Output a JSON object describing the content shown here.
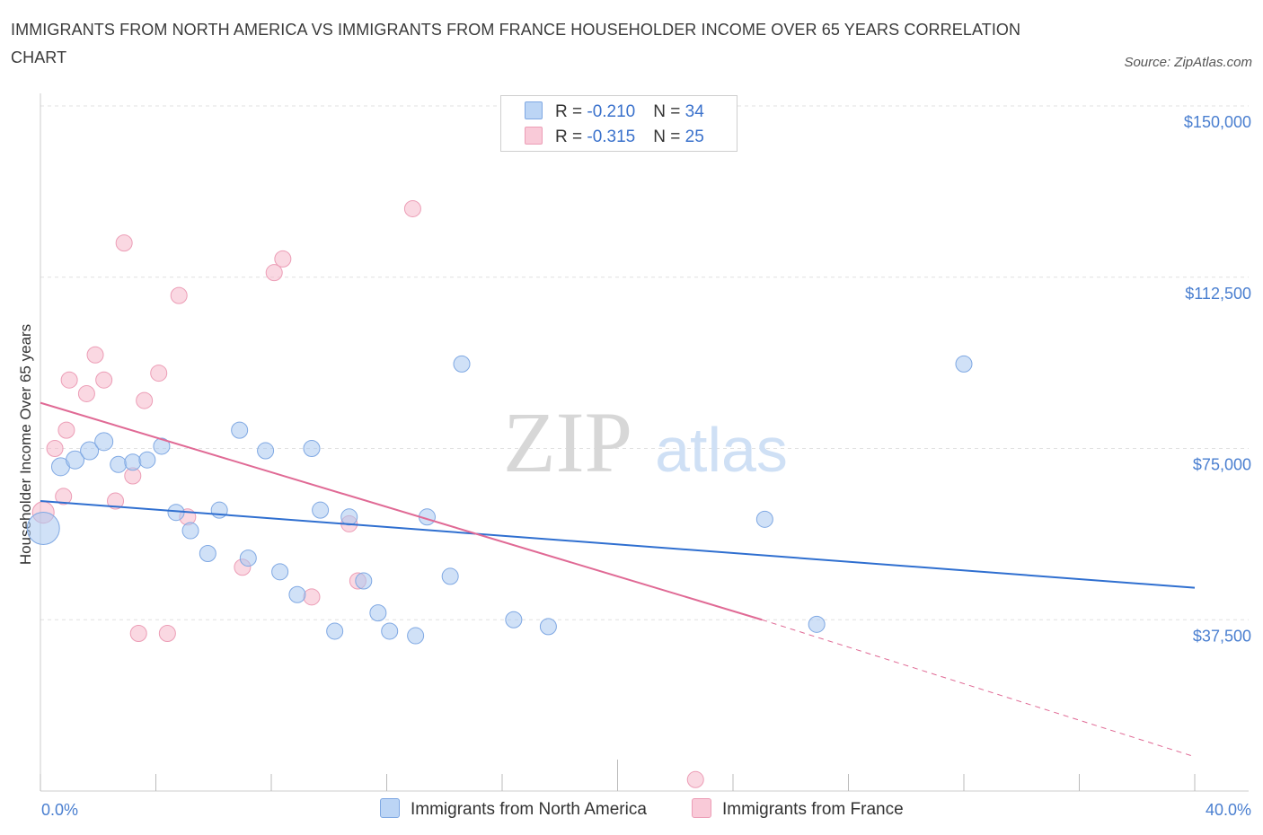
{
  "header": {
    "title": "IMMIGRANTS FROM NORTH AMERICA VS IMMIGRANTS FROM FRANCE HOUSEHOLDER INCOME OVER 65 YEARS CORRELATION CHART",
    "source": "Source: ZipAtlas.com"
  },
  "watermark": {
    "zip": "ZIP",
    "atlas": "atlas"
  },
  "legend": {
    "rows": [
      {
        "r_label": "R = ",
        "r_value": "-0.210",
        "n_label": "N = ",
        "n_value": "34"
      },
      {
        "r_label": "R = ",
        "r_value": "-0.315",
        "n_label": "N = ",
        "n_value": "25"
      }
    ]
  },
  "chart_data": {
    "type": "scatter",
    "ylabel": "Householder Income Over 65 years",
    "xlim": [
      0,
      40
    ],
    "ylim": [
      0,
      150000
    ],
    "x_tick_labels": [
      "0.0%",
      "40.0%"
    ],
    "y_tick_labels": [
      "$150,000",
      "$112,500",
      "$75,000",
      "$37,500"
    ],
    "y_ticks": [
      150000,
      112500,
      75000,
      37500
    ],
    "grid": true,
    "legend_position": "top-center",
    "colors": {
      "north_america": "#a9c8f0",
      "north_america_line": "#2f6fd0",
      "france": "#f6b8cb",
      "france_line": "#e06a95"
    },
    "series": [
      {
        "name": "Immigrants from North America",
        "r": -0.21,
        "n": 34,
        "trend": {
          "x0": 0,
          "y0": 63500,
          "x1": 40,
          "y1": 44500
        },
        "points": [
          [
            0.1,
            57500,
            18
          ],
          [
            0.7,
            71000,
            10
          ],
          [
            1.2,
            72500,
            10
          ],
          [
            1.7,
            74500,
            10
          ],
          [
            2.2,
            76500,
            10
          ],
          [
            2.7,
            71500,
            9
          ],
          [
            3.2,
            72000,
            9
          ],
          [
            3.7,
            72500,
            9
          ],
          [
            4.2,
            75500,
            9
          ],
          [
            4.7,
            61000,
            9
          ],
          [
            5.2,
            57000,
            9
          ],
          [
            5.8,
            52000,
            9
          ],
          [
            6.2,
            61500,
            9
          ],
          [
            6.9,
            79000,
            9
          ],
          [
            7.2,
            51000,
            9
          ],
          [
            7.8,
            74500,
            9
          ],
          [
            8.3,
            48000,
            9
          ],
          [
            8.9,
            43000,
            9
          ],
          [
            9.4,
            75000,
            9
          ],
          [
            9.7,
            61500,
            9
          ],
          [
            10.2,
            35000,
            9
          ],
          [
            10.7,
            60000,
            9
          ],
          [
            11.2,
            46000,
            9
          ],
          [
            11.7,
            39000,
            9
          ],
          [
            12.1,
            35000,
            9
          ],
          [
            13.0,
            34000,
            9
          ],
          [
            13.4,
            60000,
            9
          ],
          [
            14.2,
            47000,
            9
          ],
          [
            14.6,
            93500,
            9
          ],
          [
            16.4,
            37500,
            9
          ],
          [
            17.6,
            36000,
            9
          ],
          [
            25.1,
            59500,
            9
          ],
          [
            26.9,
            36500,
            9
          ],
          [
            32.0,
            93500,
            9
          ]
        ]
      },
      {
        "name": "Immigrants from France",
        "r": -0.315,
        "n": 25,
        "trend": {
          "x0": 0,
          "y0": 85000,
          "x1": 25.0,
          "y1": 37500,
          "dash_x1": 40,
          "dash_y1": 7500
        },
        "points": [
          [
            0.1,
            61000,
            12
          ],
          [
            0.5,
            75000,
            9
          ],
          [
            0.8,
            64500,
            9
          ],
          [
            0.9,
            79000,
            9
          ],
          [
            1.0,
            90000,
            9
          ],
          [
            1.6,
            87000,
            9
          ],
          [
            1.9,
            95500,
            9
          ],
          [
            2.2,
            90000,
            9
          ],
          [
            2.6,
            63500,
            9
          ],
          [
            2.9,
            120000,
            9
          ],
          [
            3.2,
            69000,
            9
          ],
          [
            3.4,
            34500,
            9
          ],
          [
            3.6,
            85500,
            9
          ],
          [
            4.1,
            91500,
            9
          ],
          [
            4.4,
            34500,
            9
          ],
          [
            4.8,
            108500,
            9
          ],
          [
            5.1,
            60000,
            9
          ],
          [
            7.0,
            49000,
            9
          ],
          [
            8.1,
            113500,
            9
          ],
          [
            8.4,
            116500,
            9
          ],
          [
            9.4,
            42500,
            9
          ],
          [
            10.7,
            58500,
            9
          ],
          [
            11.0,
            46000,
            9
          ],
          [
            12.9,
            127500,
            9
          ],
          [
            22.7,
            2500,
            9
          ]
        ]
      }
    ]
  }
}
